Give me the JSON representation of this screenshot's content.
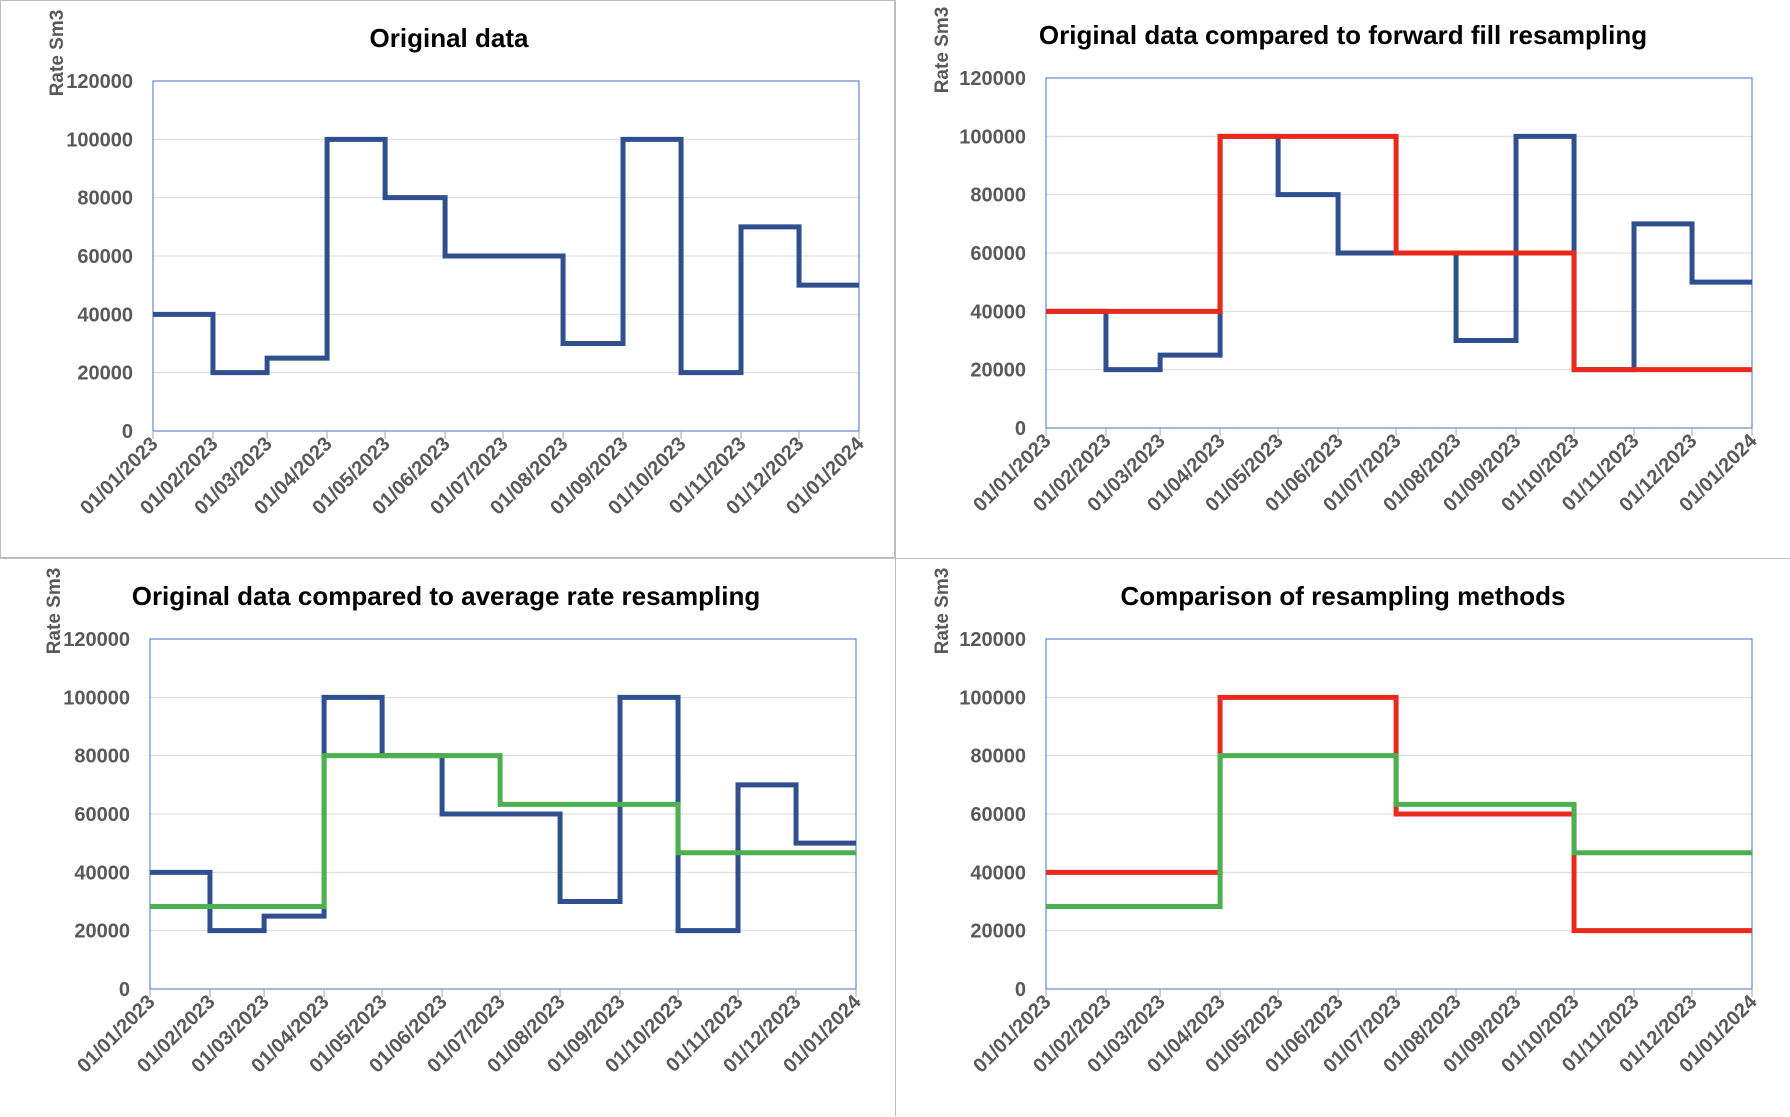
{
  "chart_data": [
    {
      "type": "line",
      "step": true,
      "title": "Original data",
      "ylabel": "Rate Sm3",
      "xlabel": "",
      "ylim": [
        0,
        120000
      ],
      "y_ticks": [
        "0",
        "20000",
        "40000",
        "60000",
        "80000",
        "100000",
        "120000"
      ],
      "x_ticks": [
        "01/01/2023",
        "01/02/2023",
        "01/03/2023",
        "01/04/2023",
        "01/05/2023",
        "01/06/2023",
        "01/07/2023",
        "01/08/2023",
        "01/09/2023",
        "01/10/2023",
        "01/11/2023",
        "01/12/2023",
        "01/01/2024"
      ],
      "grid": true,
      "legend": "none",
      "series": [
        {
          "color": "#2f4f8f",
          "x": [
            "01/01/2023",
            "01/02/2023",
            "01/03/2023",
            "01/04/2023",
            "01/05/2023",
            "01/06/2023",
            "01/07/2023",
            "01/08/2023",
            "01/09/2023",
            "01/10/2023",
            "01/11/2023",
            "01/12/2023",
            "01/01/2024"
          ],
          "values": [
            40000,
            20000,
            25000,
            100000,
            80000,
            60000,
            60000,
            30000,
            100000,
            20000,
            70000,
            50000,
            50000
          ]
        }
      ]
    },
    {
      "type": "line",
      "step": true,
      "title": "Original data compared to forward fill resampling",
      "ylabel": "Rate Sm3",
      "xlabel": "",
      "ylim": [
        0,
        120000
      ],
      "y_ticks": [
        "0",
        "20000",
        "40000",
        "60000",
        "80000",
        "100000",
        "120000"
      ],
      "x_ticks": [
        "01/01/2023",
        "01/02/2023",
        "01/03/2023",
        "01/04/2023",
        "01/05/2023",
        "01/06/2023",
        "01/07/2023",
        "01/08/2023",
        "01/09/2023",
        "01/10/2023",
        "01/11/2023",
        "01/12/2023",
        "01/01/2024"
      ],
      "grid": true,
      "legend": "none",
      "series": [
        {
          "color": "#2f4f8f",
          "x": [
            "01/01/2023",
            "01/02/2023",
            "01/03/2023",
            "01/04/2023",
            "01/05/2023",
            "01/06/2023",
            "01/07/2023",
            "01/08/2023",
            "01/09/2023",
            "01/10/2023",
            "01/11/2023",
            "01/12/2023",
            "01/01/2024"
          ],
          "values": [
            40000,
            20000,
            25000,
            100000,
            80000,
            60000,
            60000,
            30000,
            100000,
            20000,
            70000,
            50000,
            50000
          ]
        },
        {
          "color": "#e8291c",
          "x": [
            "01/01/2023",
            "01/04/2023",
            "01/07/2023",
            "01/10/2023",
            "01/01/2024"
          ],
          "values": [
            40000,
            100000,
            60000,
            20000,
            20000
          ]
        }
      ]
    },
    {
      "type": "line",
      "step": true,
      "title": "Original data compared to average rate resampling",
      "ylabel": "Rate Sm3",
      "xlabel": "",
      "ylim": [
        0,
        120000
      ],
      "y_ticks": [
        "0",
        "20000",
        "40000",
        "60000",
        "80000",
        "100000",
        "120000"
      ],
      "x_ticks": [
        "01/01/2023",
        "01/02/2023",
        "01/03/2023",
        "01/04/2023",
        "01/05/2023",
        "01/06/2023",
        "01/07/2023",
        "01/08/2023",
        "01/09/2023",
        "01/10/2023",
        "01/11/2023",
        "01/12/2023",
        "01/01/2024"
      ],
      "grid": true,
      "legend": "none",
      "series": [
        {
          "color": "#2f4f8f",
          "x": [
            "01/01/2023",
            "01/02/2023",
            "01/03/2023",
            "01/04/2023",
            "01/05/2023",
            "01/06/2023",
            "01/07/2023",
            "01/08/2023",
            "01/09/2023",
            "01/10/2023",
            "01/11/2023",
            "01/12/2023",
            "01/01/2024"
          ],
          "values": [
            40000,
            20000,
            25000,
            100000,
            80000,
            60000,
            60000,
            30000,
            100000,
            20000,
            70000,
            50000,
            50000
          ]
        },
        {
          "color": "#4caf50",
          "x": [
            "01/01/2023",
            "01/04/2023",
            "01/07/2023",
            "01/10/2023",
            "01/01/2024"
          ],
          "values": [
            28300,
            80000,
            63300,
            46700,
            46700
          ]
        }
      ]
    },
    {
      "type": "line",
      "step": true,
      "title": "Comparison of resampling methods",
      "ylabel": "Rate Sm3",
      "xlabel": "",
      "ylim": [
        0,
        120000
      ],
      "y_ticks": [
        "0",
        "20000",
        "40000",
        "60000",
        "80000",
        "100000",
        "120000"
      ],
      "x_ticks": [
        "01/01/2023",
        "01/02/2023",
        "01/03/2023",
        "01/04/2023",
        "01/05/2023",
        "01/06/2023",
        "01/07/2023",
        "01/08/2023",
        "01/09/2023",
        "01/10/2023",
        "01/11/2023",
        "01/12/2023",
        "01/01/2024"
      ],
      "grid": true,
      "legend": "none",
      "series": [
        {
          "color": "#e8291c",
          "x": [
            "01/01/2023",
            "01/04/2023",
            "01/07/2023",
            "01/10/2023",
            "01/01/2024"
          ],
          "values": [
            40000,
            100000,
            60000,
            20000,
            20000
          ]
        },
        {
          "color": "#4caf50",
          "x": [
            "01/01/2023",
            "01/04/2023",
            "01/07/2023",
            "01/10/2023",
            "01/01/2024"
          ],
          "values": [
            28300,
            80000,
            63300,
            46700,
            46700
          ]
        }
      ]
    }
  ]
}
